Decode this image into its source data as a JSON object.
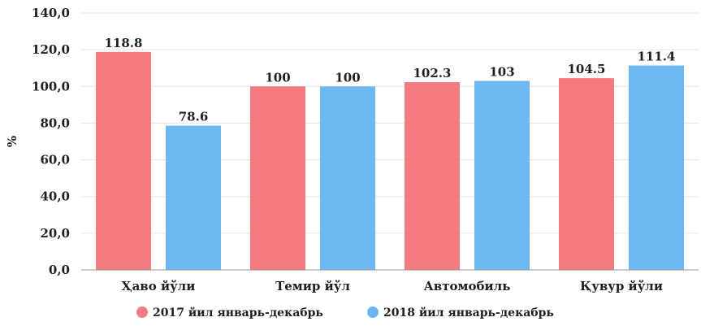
{
  "chart_data": {
    "type": "bar",
    "categories": [
      "Ҳаво йўли",
      "Темир йўл",
      "Автомобиль",
      "Қувур йўли"
    ],
    "series": [
      {
        "name": "2017 йил январь-декабрь",
        "values": [
          118.8,
          100,
          102.3,
          104.5
        ],
        "value_labels": [
          "118.8",
          "100",
          "102.3",
          "104.5"
        ],
        "color": "#f47a80"
      },
      {
        "name": "2018 йил январь-декабрь",
        "values": [
          78.6,
          100,
          103,
          111.4
        ],
        "value_labels": [
          "78.6",
          "100",
          "103",
          "111.4"
        ],
        "color": "#6db8f0"
      }
    ],
    "ylabel": "%",
    "ylim": [
      0,
      140
    ],
    "yticks": [
      0,
      20,
      40,
      60,
      80,
      100,
      120,
      140
    ],
    "ytick_labels": [
      "0,0",
      "20,0",
      "40,0",
      "60,0",
      "80,0",
      "100,0",
      "120,0",
      "140,0"
    ],
    "grid": true,
    "legend_position": "bottom"
  }
}
